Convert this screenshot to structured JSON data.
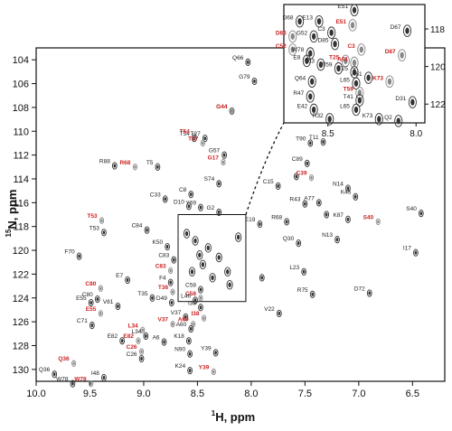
{
  "chart_data": {
    "type": "scatter",
    "subtype": "2D NMR 1H-15N HSQC spectrum",
    "xlabel_sup": "1",
    "xlabel": "H, ppm",
    "ylabel_sup": "15",
    "ylabel": "N, ppm",
    "xlim": [
      10.0,
      6.2
    ],
    "ylim": [
      131,
      103
    ],
    "x_reversed": true,
    "y_reversed": true,
    "x_ticks": [
      "10.0",
      "9.5",
      "9.0",
      "8.5",
      "8.0",
      "7.5",
      "7.0",
      "6.5"
    ],
    "y_ticks": [
      "104",
      "106",
      "108",
      "110",
      "112",
      "114",
      "116",
      "118",
      "120",
      "122",
      "124",
      "126",
      "128",
      "130"
    ],
    "colors": {
      "black_label": "#222222",
      "red_label": "#cc2222",
      "contour": "#333333",
      "crosspeak": "#888888"
    },
    "zoom_box": {
      "x_range": [
        8.68,
        8.05
      ],
      "y_range": [
        117.0,
        124.3
      ]
    },
    "peaks": [
      {
        "label": "Q66",
        "x": 8.03,
        "y": 104.2,
        "color": "black"
      },
      {
        "label": "G79",
        "x": 7.97,
        "y": 105.8,
        "color": "black"
      },
      {
        "label": "G44",
        "x": 8.18,
        "y": 108.3,
        "color": "black"
      },
      {
        "label": "G44",
        "x": 8.18,
        "y": 108.3,
        "color": "red"
      },
      {
        "label": "T54",
        "x": 8.53,
        "y": 110.6,
        "color": "black"
      },
      {
        "label": "T54",
        "x": 8.53,
        "y": 110.4,
        "color": "red"
      },
      {
        "label": "T27",
        "x": 8.43,
        "y": 110.6,
        "color": "black"
      },
      {
        "label": "T27",
        "x": 8.45,
        "y": 111.0,
        "color": "red"
      },
      {
        "label": "T90",
        "x": 7.45,
        "y": 111.0,
        "color": "black"
      },
      {
        "label": "T11",
        "x": 7.33,
        "y": 110.9,
        "color": "black"
      },
      {
        "label": "G57",
        "x": 8.25,
        "y": 112.0,
        "color": "black"
      },
      {
        "label": "G17",
        "x": 8.26,
        "y": 112.6,
        "color": "red"
      },
      {
        "label": "R88",
        "x": 9.27,
        "y": 112.9,
        "color": "black"
      },
      {
        "label": "R68",
        "x": 9.08,
        "y": 113.0,
        "color": "red"
      },
      {
        "label": "T5",
        "x": 8.87,
        "y": 113.0,
        "color": "black"
      },
      {
        "label": "C89",
        "x": 7.48,
        "y": 112.7,
        "color": "black"
      },
      {
        "label": "C39",
        "x": 7.44,
        "y": 113.9,
        "color": "red"
      },
      {
        "label": "S74",
        "x": 8.3,
        "y": 114.4,
        "color": "black"
      },
      {
        "label": "C15",
        "x": 7.75,
        "y": 114.6,
        "color": "black"
      },
      {
        "label": "N14",
        "x": 7.1,
        "y": 114.8,
        "color": "black"
      },
      {
        "label": "K45",
        "x": 7.03,
        "y": 115.5,
        "color": "black"
      },
      {
        "label": "C33",
        "x": 8.8,
        "y": 115.7,
        "color": "black"
      },
      {
        "label": "C8",
        "x": 8.56,
        "y": 115.3,
        "color": "black"
      },
      {
        "label": "D10",
        "x": 8.58,
        "y": 116.3,
        "color": "black"
      },
      {
        "label": "Y69",
        "x": 8.47,
        "y": 116.4,
        "color": "black"
      },
      {
        "label": "G2",
        "x": 8.3,
        "y": 116.8,
        "color": "black"
      },
      {
        "label": "R43",
        "x": 7.5,
        "y": 116.1,
        "color": "black"
      },
      {
        "label": "A77",
        "x": 7.37,
        "y": 116.0,
        "color": "black"
      },
      {
        "label": "R68",
        "x": 7.67,
        "y": 117.6,
        "color": "black"
      },
      {
        "label": "T53",
        "x": 9.39,
        "y": 117.5,
        "color": "red"
      },
      {
        "label": "T53",
        "x": 9.37,
        "y": 118.5,
        "color": "black"
      },
      {
        "label": "C84",
        "x": 8.97,
        "y": 118.3,
        "color": "black"
      },
      {
        "label": "K87",
        "x": 7.1,
        "y": 117.4,
        "color": "black"
      },
      {
        "label": "S40",
        "x": 6.82,
        "y": 117.6,
        "color": "red"
      },
      {
        "label": "S40",
        "x": 6.42,
        "y": 116.9,
        "color": "black"
      },
      {
        "label": "E19",
        "x": 7.92,
        "y": 117.8,
        "color": "black"
      },
      {
        "label": "F70",
        "x": 9.6,
        "y": 120.5,
        "color": "black"
      },
      {
        "label": "K50",
        "x": 8.78,
        "y": 119.7,
        "color": "black"
      },
      {
        "label": "C83",
        "x": 8.72,
        "y": 120.8,
        "color": "black"
      },
      {
        "label": "Q30",
        "x": 7.56,
        "y": 119.4,
        "color": "black"
      },
      {
        "label": "N13",
        "x": 7.2,
        "y": 119.1,
        "color": "black"
      },
      {
        "label": "I17",
        "x": 6.47,
        "y": 120.2,
        "color": "black"
      },
      {
        "label": "E7",
        "x": 9.15,
        "y": 122.5,
        "color": "black"
      },
      {
        "label": "F4",
        "x": 8.75,
        "y": 122.7,
        "color": "black"
      },
      {
        "label": "C83",
        "x": 8.75,
        "y": 121.7,
        "color": "red"
      },
      {
        "label": "C80",
        "x": 9.4,
        "y": 123.2,
        "color": "red"
      },
      {
        "label": "T36",
        "x": 8.73,
        "y": 123.5,
        "color": "red"
      },
      {
        "label": "L23",
        "x": 7.51,
        "y": 121.8,
        "color": "black"
      },
      {
        "label": "C80",
        "x": 9.43,
        "y": 124.1,
        "color": "black"
      },
      {
        "label": "E55",
        "x": 9.49,
        "y": 124.4,
        "color": "black"
      },
      {
        "label": "V81",
        "x": 9.24,
        "y": 124.7,
        "color": "black"
      },
      {
        "label": "T35",
        "x": 8.92,
        "y": 124.0,
        "color": "black"
      },
      {
        "label": "D49",
        "x": 8.74,
        "y": 124.4,
        "color": "black"
      },
      {
        "label": "C58",
        "x": 8.47,
        "y": 123.3,
        "color": "black"
      },
      {
        "label": "C58",
        "x": 8.47,
        "y": 124.0,
        "color": "red"
      },
      {
        "label": "L46",
        "x": 8.52,
        "y": 124.2,
        "color": "black"
      },
      {
        "label": "I38",
        "x": 8.47,
        "y": 124.8,
        "color": "black"
      },
      {
        "label": "I38",
        "x": 8.44,
        "y": 125.7,
        "color": "red"
      },
      {
        "label": "R75",
        "x": 7.43,
        "y": 123.7,
        "color": "black"
      },
      {
        "label": "D72",
        "x": 6.9,
        "y": 123.6,
        "color": "black"
      },
      {
        "label": "E55",
        "x": 9.4,
        "y": 125.3,
        "color": "red"
      },
      {
        "label": "C71",
        "x": 9.48,
        "y": 126.3,
        "color": "black"
      },
      {
        "label": "V37",
        "x": 8.61,
        "y": 125.6,
        "color": "black"
      },
      {
        "label": "V37",
        "x": 8.73,
        "y": 126.2,
        "color": "red"
      },
      {
        "label": "A60",
        "x": 8.54,
        "y": 126.2,
        "color": "red"
      },
      {
        "label": "A60",
        "x": 8.56,
        "y": 126.6,
        "color": "black"
      },
      {
        "label": "L34",
        "x": 9.01,
        "y": 126.7,
        "color": "red"
      },
      {
        "label": "L34",
        "x": 8.98,
        "y": 127.2,
        "color": "black"
      },
      {
        "label": "V22",
        "x": 7.74,
        "y": 125.3,
        "color": "black"
      },
      {
        "label": "E82",
        "x": 9.2,
        "y": 127.6,
        "color": "black"
      },
      {
        "label": "E82",
        "x": 9.05,
        "y": 127.6,
        "color": "red"
      },
      {
        "label": "A6",
        "x": 8.81,
        "y": 127.7,
        "color": "black"
      },
      {
        "label": "K18",
        "x": 8.58,
        "y": 127.6,
        "color": "black"
      },
      {
        "label": "C26",
        "x": 9.02,
        "y": 128.5,
        "color": "red"
      },
      {
        "label": "C26",
        "x": 9.02,
        "y": 129.1,
        "color": "black"
      },
      {
        "label": "N90",
        "x": 8.57,
        "y": 128.7,
        "color": "black"
      },
      {
        "label": "Y39",
        "x": 8.33,
        "y": 128.6,
        "color": "black"
      },
      {
        "label": "Q36",
        "x": 9.65,
        "y": 129.5,
        "color": "red"
      },
      {
        "label": "K24",
        "x": 8.57,
        "y": 130.1,
        "color": "black"
      },
      {
        "label": "Y39",
        "x": 8.35,
        "y": 130.2,
        "color": "red"
      },
      {
        "label": "Q36",
        "x": 9.83,
        "y": 130.4,
        "color": "black"
      },
      {
        "label": "I48",
        "x": 9.37,
        "y": 130.7,
        "color": "black"
      },
      {
        "label": "W78",
        "x": 9.66,
        "y": 131.2,
        "color": "black"
      },
      {
        "label": "W78",
        "x": 9.49,
        "y": 131.2,
        "color": "red"
      }
    ],
    "unlabeled_peaks": [
      {
        "x": 8.6,
        "y": 118.6
      },
      {
        "x": 8.52,
        "y": 119.2
      },
      {
        "x": 8.4,
        "y": 119.8
      },
      {
        "x": 8.3,
        "y": 120.6
      },
      {
        "x": 8.45,
        "y": 121.2
      },
      {
        "x": 8.55,
        "y": 121.8
      },
      {
        "x": 8.36,
        "y": 122.3
      },
      {
        "x": 8.2,
        "y": 122.9
      },
      {
        "x": 8.12,
        "y": 118.9
      },
      {
        "x": 8.48,
        "y": 120.4
      },
      {
        "x": 8.22,
        "y": 121.8
      },
      {
        "x": 7.58,
        "y": 113.8
      },
      {
        "x": 7.9,
        "y": 122.3
      },
      {
        "x": 7.3,
        "y": 117.0
      }
    ],
    "inset": {
      "xlim": [
        8.75,
        7.95
      ],
      "ylim": [
        123,
        116.7
      ],
      "x_ticks": [
        "8.5",
        "8.0"
      ],
      "y_ticks": [
        "118",
        "120",
        "122"
      ],
      "peaks": [
        {
          "label": "D68",
          "x": 8.66,
          "y": 117.6,
          "color": "black"
        },
        {
          "label": "E13",
          "x": 8.55,
          "y": 117.6,
          "color": "black"
        },
        {
          "label": "E51",
          "x": 8.35,
          "y": 117.0,
          "color": "black"
        },
        {
          "label": "E51",
          "x": 8.36,
          "y": 117.8,
          "color": "red"
        },
        {
          "label": "D67",
          "x": 8.05,
          "y": 118.1,
          "color": "black"
        },
        {
          "label": "D86",
          "x": 8.7,
          "y": 118.4,
          "color": "red"
        },
        {
          "label": "G52",
          "x": 8.58,
          "y": 118.4,
          "color": "black"
        },
        {
          "label": "C3",
          "x": 8.48,
          "y": 118.2,
          "color": "black"
        },
        {
          "label": "D85",
          "x": 8.46,
          "y": 118.8,
          "color": "black"
        },
        {
          "label": "C52",
          "x": 8.7,
          "y": 119.1,
          "color": "red"
        },
        {
          "label": "W78",
          "x": 8.6,
          "y": 119.3,
          "color": "black"
        },
        {
          "label": "C3",
          "x": 8.31,
          "y": 119.1,
          "color": "red"
        },
        {
          "label": "D87",
          "x": 8.08,
          "y": 119.4,
          "color": "red"
        },
        {
          "label": "E8",
          "x": 8.62,
          "y": 119.7,
          "color": "black"
        },
        {
          "label": "T63",
          "x": 8.54,
          "y": 119.9,
          "color": "black"
        },
        {
          "label": "T25",
          "x": 8.4,
          "y": 119.7,
          "color": "red"
        },
        {
          "label": "A61",
          "x": 8.35,
          "y": 119.8,
          "color": "red"
        },
        {
          "label": "T59",
          "x": 8.44,
          "y": 120.1,
          "color": "black"
        },
        {
          "label": "T25",
          "x": 8.35,
          "y": 120.3,
          "color": "black"
        },
        {
          "label": "A61",
          "x": 8.27,
          "y": 120.6,
          "color": "black"
        },
        {
          "label": "Q64",
          "x": 8.59,
          "y": 120.8,
          "color": "black"
        },
        {
          "label": "L65",
          "x": 8.34,
          "y": 120.9,
          "color": "black"
        },
        {
          "label": "T59",
          "x": 8.32,
          "y": 121.4,
          "color": "red"
        },
        {
          "label": "K73",
          "x": 8.15,
          "y": 120.8,
          "color": "red"
        },
        {
          "label": "R47",
          "x": 8.6,
          "y": 121.6,
          "color": "black"
        },
        {
          "label": "T41",
          "x": 8.32,
          "y": 121.8,
          "color": "black"
        },
        {
          "label": "D31",
          "x": 8.02,
          "y": 121.9,
          "color": "black"
        },
        {
          "label": "E42",
          "x": 8.58,
          "y": 122.3,
          "color": "black"
        },
        {
          "label": "L65",
          "x": 8.34,
          "y": 122.3,
          "color": "black"
        },
        {
          "label": "R32",
          "x": 8.49,
          "y": 122.8,
          "color": "black"
        },
        {
          "label": "K73",
          "x": 8.21,
          "y": 122.8,
          "color": "black"
        },
        {
          "label": "Q2",
          "x": 8.1,
          "y": 122.9,
          "color": "black"
        }
      ]
    }
  }
}
